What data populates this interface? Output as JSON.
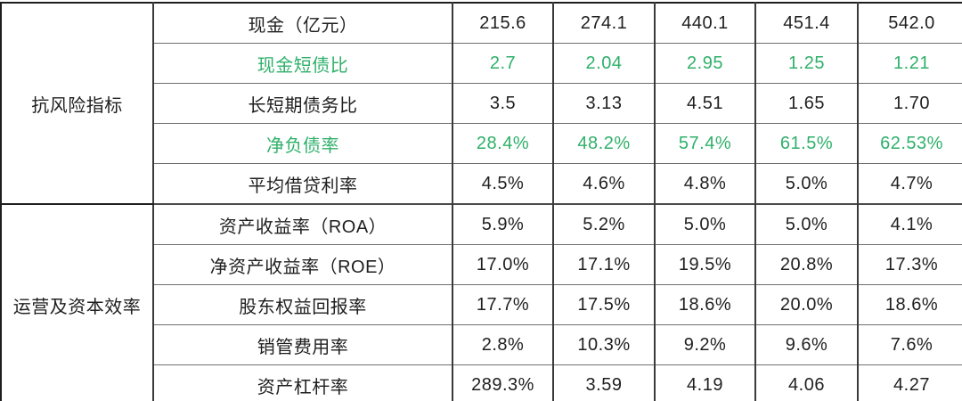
{
  "accent_green": "#2fb06a",
  "text_color": "#1f1f1f",
  "table": {
    "groups": [
      {
        "label": "抗风险指标",
        "rows": [
          {
            "metric": "现金（亿元）",
            "highlight": false,
            "values": [
              "215.6",
              "274.1",
              "440.1",
              "451.4",
              "542.0"
            ]
          },
          {
            "metric": "现金短债比",
            "highlight": true,
            "values": [
              "2.7",
              "2.04",
              "2.95",
              "1.25",
              "1.21"
            ]
          },
          {
            "metric": "长短期债务比",
            "highlight": false,
            "values": [
              "3.5",
              "3.13",
              "4.51",
              "1.65",
              "1.70"
            ]
          },
          {
            "metric": "净负债率",
            "highlight": true,
            "values": [
              "28.4%",
              "48.2%",
              "57.4%",
              "61.5%",
              "62.53%"
            ]
          },
          {
            "metric": "平均借贷利率",
            "highlight": false,
            "values": [
              "4.5%",
              "4.6%",
              "4.8%",
              "5.0%",
              "4.7%"
            ]
          }
        ]
      },
      {
        "label": "运营及资本效率",
        "rows": [
          {
            "metric": "资产收益率（ROA）",
            "highlight": false,
            "values": [
              "5.9%",
              "5.2%",
              "5.0%",
              "5.0%",
              "4.1%"
            ]
          },
          {
            "metric": "净资产收益率（ROE）",
            "highlight": false,
            "values": [
              "17.0%",
              "17.1%",
              "19.5%",
              "20.8%",
              "17.3%"
            ]
          },
          {
            "metric": "股东权益回报率",
            "highlight": false,
            "values": [
              "17.7%",
              "17.5%",
              "18.6%",
              "20.0%",
              "18.6%"
            ]
          },
          {
            "metric": "销管费用率",
            "highlight": false,
            "values": [
              "2.8%",
              "10.3%",
              "9.2%",
              "9.6%",
              "7.6%"
            ]
          },
          {
            "metric": "资产杠杆率",
            "highlight": false,
            "values": [
              "289.3%",
              "3.59",
              "4.19",
              "4.06",
              "4.27"
            ]
          }
        ]
      }
    ]
  },
  "chart_data": {
    "type": "table",
    "title": "",
    "row_group_column": [
      "抗风险指标",
      "运营及资本效率"
    ],
    "rows": [
      [
        "抗风险指标",
        "现金（亿元）",
        "215.6",
        "274.1",
        "440.1",
        "451.4",
        "542.0"
      ],
      [
        "抗风险指标",
        "现金短债比",
        "2.7",
        "2.04",
        "2.95",
        "1.25",
        "1.21"
      ],
      [
        "抗风险指标",
        "长短期债务比",
        "3.5",
        "3.13",
        "4.51",
        "1.65",
        "1.70"
      ],
      [
        "抗风险指标",
        "净负债率",
        "28.4%",
        "48.2%",
        "57.4%",
        "61.5%",
        "62.53%"
      ],
      [
        "抗风险指标",
        "平均借贷利率",
        "4.5%",
        "4.6%",
        "4.8%",
        "5.0%",
        "4.7%"
      ],
      [
        "运营及资本效率",
        "资产收益率（ROA）",
        "5.9%",
        "5.2%",
        "5.0%",
        "5.0%",
        "4.1%"
      ],
      [
        "运营及资本效率",
        "净资产收益率（ROE）",
        "17.0%",
        "17.1%",
        "19.5%",
        "20.8%",
        "17.3%"
      ],
      [
        "运营及资本效率",
        "股东权益回报率",
        "17.7%",
        "17.5%",
        "18.6%",
        "20.0%",
        "18.6%"
      ],
      [
        "运营及资本效率",
        "销管费用率",
        "2.8%",
        "10.3%",
        "9.2%",
        "9.6%",
        "7.6%"
      ],
      [
        "运营及资本效率",
        "资产杠杆率",
        "289.3%",
        "3.59",
        "4.19",
        "4.06",
        "4.27"
      ]
    ],
    "highlighted_rows_green": [
      "现金短债比",
      "净负债率"
    ],
    "layout_hints": {
      "grid": "on",
      "header_row": "none (cropped)",
      "group_cells_rowspan": 5
    }
  }
}
